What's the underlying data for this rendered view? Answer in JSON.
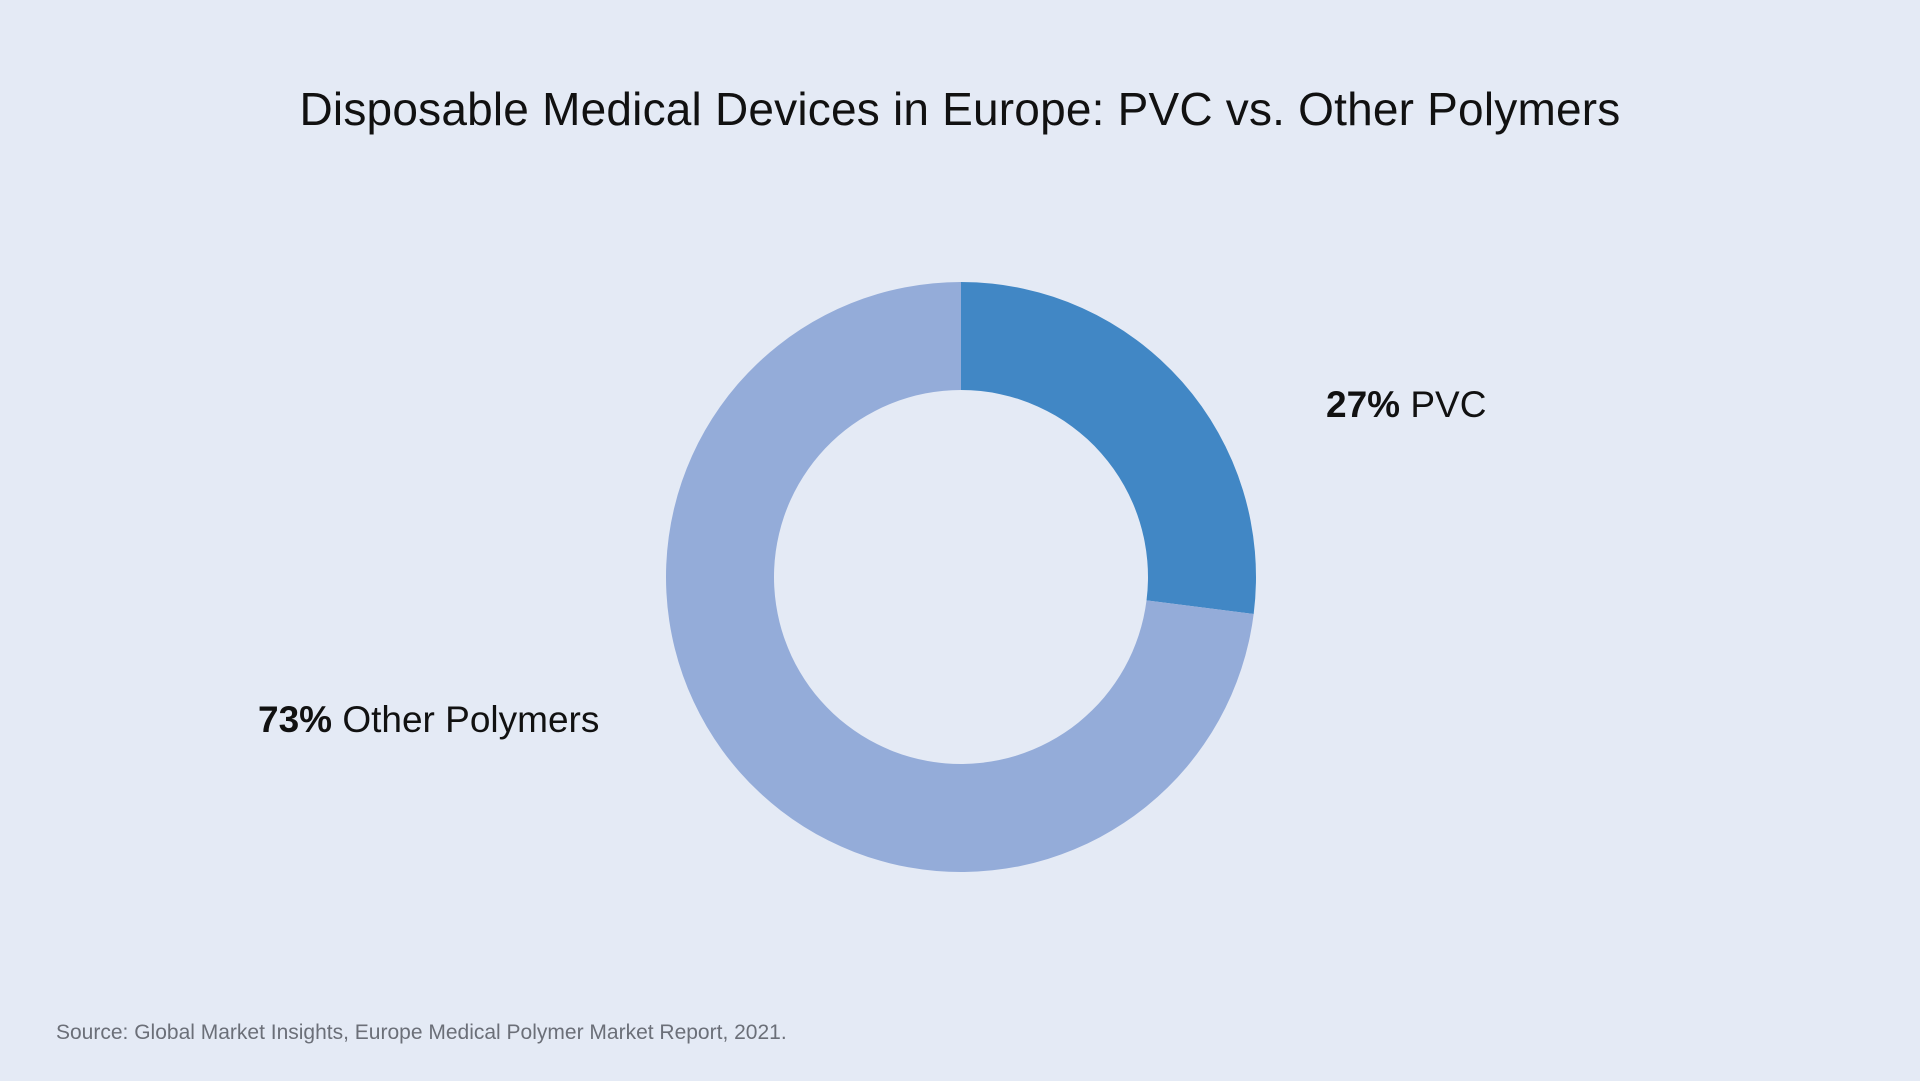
{
  "chart_data": {
    "type": "pie",
    "title": "Disposable Medical Devices in Europe: PVC vs. Other Polymers",
    "slices": [
      {
        "label": "PVC",
        "value": 27,
        "display": "27%",
        "color": "#4187c5"
      },
      {
        "label": "Other Polymers",
        "value": 73,
        "display": "73%",
        "color": "#94acd9"
      }
    ],
    "style": "donut",
    "start_angle": "12 o'clock",
    "direction": "clockwise",
    "source": "Source: Global Market Insights, Europe Medical Polymer Market Report, 2021."
  },
  "background_color": "#e4eaf5"
}
